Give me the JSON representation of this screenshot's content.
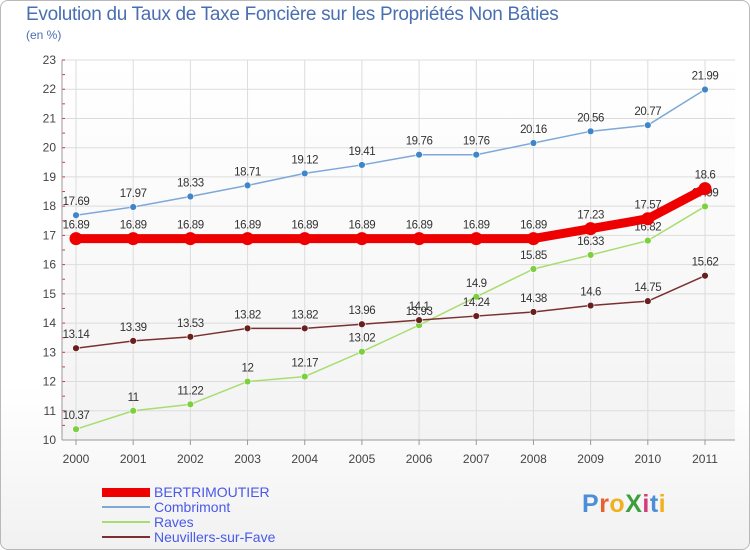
{
  "title": "Evolution du Taux de Taxe Foncière sur les Propriétés Non Bâties",
  "subtitle": "(en %)",
  "logo": {
    "text": "ProXiti",
    "letter_colors": [
      "#4c8fd6",
      "#e8612c",
      "#f0b020",
      "#3f9e3f",
      "#d63a7a",
      "#4c8fd6",
      "#f0b020"
    ]
  },
  "chart_data": {
    "type": "line",
    "x": [
      "2000",
      "2001",
      "2002",
      "2003",
      "2004",
      "2005",
      "2006",
      "2007",
      "2008",
      "2009",
      "2010",
      "2011"
    ],
    "ylim": [
      10,
      23
    ],
    "yticks": [
      "10",
      "11",
      "12",
      "13",
      "14",
      "15",
      "16",
      "17",
      "18",
      "19",
      "20",
      "21",
      "22",
      "23"
    ],
    "grid": true,
    "legend_position": "bottom-left",
    "series": [
      {
        "name": "BERTRIMOUTIER",
        "color": "#ee0000",
        "emphasis": true,
        "values": [
          16.89,
          16.89,
          16.89,
          16.89,
          16.89,
          16.89,
          16.89,
          16.89,
          16.89,
          17.23,
          17.57,
          18.6
        ],
        "labels": [
          "16.89",
          "16.89",
          "16.89",
          "16.89",
          "16.89",
          "16.89",
          "16.89",
          "16.89",
          "16.89",
          "17.23",
          "17.57",
          "18.6"
        ]
      },
      {
        "name": "Combrimont",
        "color": "#7fa8d8",
        "marker": "#3f86c8",
        "emphasis": false,
        "values": [
          17.69,
          17.97,
          18.33,
          18.71,
          19.12,
          19.41,
          19.76,
          19.76,
          20.16,
          20.56,
          20.77,
          21.99
        ],
        "labels": [
          "17.69",
          "17.97",
          "18.33",
          "18.71",
          "19.12",
          "19.41",
          "19.76",
          "19.76",
          "20.16",
          "20.56",
          "20.77",
          "21.99"
        ]
      },
      {
        "name": "Raves",
        "color": "#a8dd70",
        "marker": "#7ccf3f",
        "emphasis": false,
        "values": [
          10.37,
          11,
          11.22,
          12,
          12.17,
          13.02,
          13.93,
          14.9,
          15.85,
          16.33,
          16.82,
          17.99
        ],
        "labels": [
          "10.37",
          "11",
          "11.22",
          "12",
          "12.17",
          "13.02",
          "13.93",
          "14.9",
          "15.85",
          "16.33",
          "16.82",
          "17.99"
        ]
      },
      {
        "name": "Neuvillers-sur-Fave",
        "color": "#7a3030",
        "marker": "#6a1f1f",
        "emphasis": false,
        "values": [
          13.14,
          13.39,
          13.53,
          13.82,
          13.82,
          13.96,
          14.1,
          14.24,
          14.38,
          14.6,
          14.75,
          15.62
        ],
        "labels": [
          "13.14",
          "13.39",
          "13.53",
          "13.82",
          "13.82",
          "13.96",
          "14.1",
          "14.24",
          "14.38",
          "14.6",
          "14.75",
          "15.62"
        ]
      }
    ]
  }
}
